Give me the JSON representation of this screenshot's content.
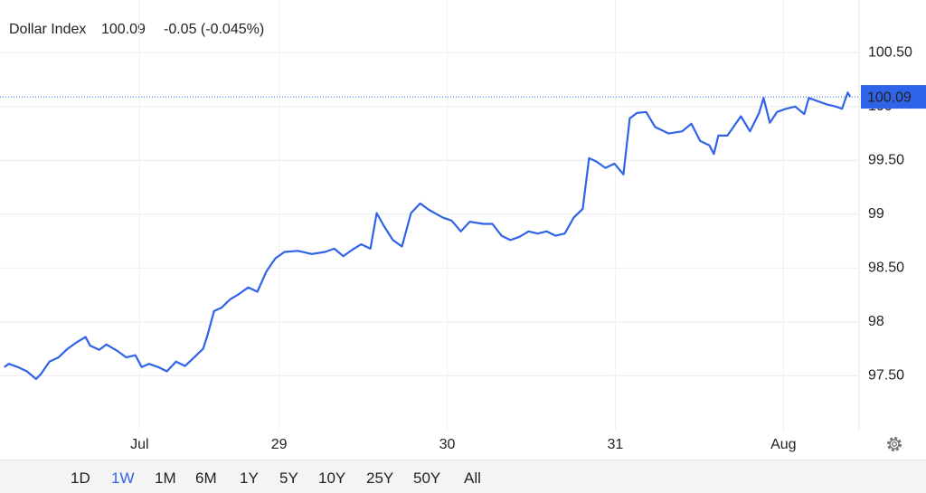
{
  "chart_data": {
    "type": "line",
    "title": "Dollar Index",
    "price": "100.09",
    "change": "-0.05 (-0.045%)",
    "color": "#2f63e8",
    "price_color": "#2f63e8",
    "change_color": "#e0453a",
    "grid": true,
    "xlim": [
      27.34,
      32.45
    ],
    "ylim": [
      96.99,
      100.99
    ],
    "xticks": [
      {
        "value": 28.17,
        "label": "Jul"
      },
      29,
      30,
      31,
      {
        "value": 32,
        "label": "Aug"
      }
    ],
    "yticks": [
      {
        "value": 97.5,
        "label": "97.50"
      },
      98,
      {
        "value": 98.5,
        "label": "98.50"
      },
      99,
      {
        "value": 99.5,
        "label": "99.50"
      },
      100,
      {
        "value": 100.5,
        "label": "100.50"
      }
    ],
    "x": [
      27.366,
      27.392,
      27.446,
      27.5,
      27.554,
      27.581,
      27.634,
      27.688,
      27.742,
      27.796,
      27.849,
      27.876,
      27.93,
      27.973,
      28.038,
      28.091,
      28.145,
      28.183,
      28.226,
      28.28,
      28.333,
      28.387,
      28.441,
      28.495,
      28.548,
      28.575,
      28.613,
      28.656,
      28.71,
      28.763,
      28.817,
      28.871,
      28.925,
      28.978,
      29.032,
      29.113,
      29.194,
      29.274,
      29.328,
      29.382,
      29.435,
      29.489,
      29.543,
      29.581,
      29.624,
      29.677,
      29.731,
      29.785,
      29.839,
      29.892,
      29.973,
      30.027,
      30.081,
      30.134,
      30.215,
      30.269,
      30.323,
      30.376,
      30.43,
      30.484,
      30.538,
      30.591,
      30.645,
      30.699,
      30.753,
      30.806,
      30.844,
      30.887,
      30.941,
      30.995,
      31.048,
      31.086,
      31.129,
      31.183,
      31.237,
      31.317,
      31.398,
      31.452,
      31.505,
      31.559,
      31.586,
      31.613,
      31.667,
      31.72,
      31.747,
      31.801,
      31.855,
      31.882,
      31.919,
      31.962,
      32.016,
      32.07,
      32.124,
      32.151,
      32.204,
      32.258,
      32.312,
      32.349,
      32.382,
      32.398
    ],
    "values": [
      97.58,
      97.61,
      97.58,
      97.54,
      97.47,
      97.51,
      97.63,
      97.67,
      97.75,
      97.81,
      97.86,
      97.78,
      97.74,
      97.79,
      97.73,
      97.67,
      97.69,
      97.58,
      97.61,
      97.58,
      97.54,
      97.63,
      97.59,
      97.67,
      97.75,
      97.88,
      98.1,
      98.13,
      98.21,
      98.26,
      98.32,
      98.28,
      98.47,
      98.59,
      98.65,
      98.66,
      98.63,
      98.65,
      98.68,
      98.61,
      98.67,
      98.72,
      98.68,
      99.01,
      98.89,
      98.76,
      98.7,
      99.01,
      99.1,
      99.04,
      98.97,
      98.94,
      98.84,
      98.93,
      98.91,
      98.91,
      98.8,
      98.76,
      98.79,
      98.84,
      98.82,
      98.84,
      98.8,
      98.82,
      98.97,
      99.05,
      99.52,
      99.49,
      99.43,
      99.47,
      99.37,
      99.89,
      99.94,
      99.95,
      99.81,
      99.75,
      99.77,
      99.84,
      99.68,
      99.64,
      99.56,
      99.73,
      99.73,
      99.85,
      99.91,
      99.77,
      99.94,
      100.08,
      99.85,
      99.95,
      99.98,
      100,
      99.93,
      100.08,
      100.05,
      100.02,
      100,
      99.98,
      100.13,
      100.09
    ]
  },
  "toolbar": {
    "ranges": [
      "1D",
      "1W",
      "1M",
      "6M",
      "1Y",
      "5Y",
      "10Y",
      "25Y",
      "50Y",
      "All"
    ],
    "selected": 1
  }
}
